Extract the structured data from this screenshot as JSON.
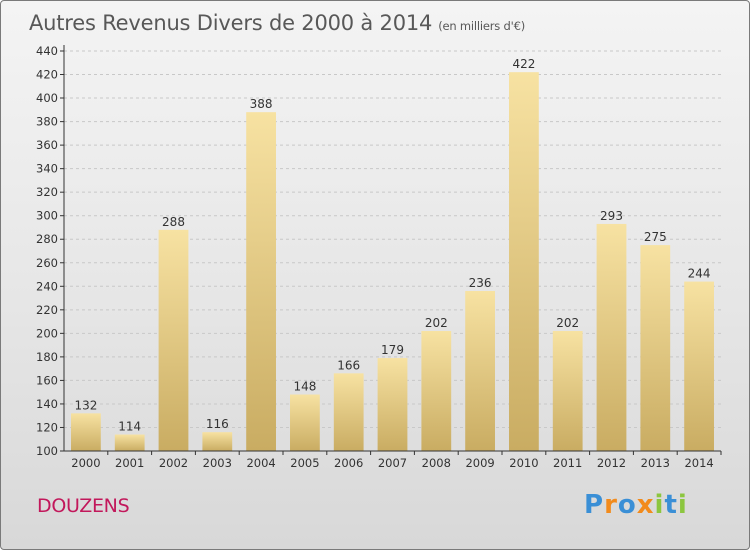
{
  "title": "Autres Revenus Divers de 2000 à 2014",
  "subtitle": "(en milliers d'€)",
  "commune": "DOUZENS",
  "logo": {
    "text": "Proxiti",
    "letters": [
      {
        "ch": "P",
        "color": "#3a8fd6"
      },
      {
        "ch": "r",
        "color": "#f28b1c"
      },
      {
        "ch": "o",
        "color": "#3a8fd6"
      },
      {
        "ch": "x",
        "color": "#f28b1c"
      },
      {
        "ch": "i",
        "color": "#8cc63f"
      },
      {
        "ch": "t",
        "color": "#3a8fd6"
      },
      {
        "ch": "i",
        "color": "#8cc63f"
      }
    ]
  },
  "colors": {
    "bar_top": "#f7e2a2",
    "bar_bottom": "#c9ac62",
    "axis": "#333333",
    "grid": "#c8c8c8",
    "commune": "#c2185b"
  },
  "chart_data": {
    "type": "bar",
    "title": "Autres Revenus Divers de 2000 à 2014",
    "categories": [
      "2000",
      "2001",
      "2002",
      "2003",
      "2004",
      "2005",
      "2006",
      "2007",
      "2008",
      "2009",
      "2010",
      "2011",
      "2012",
      "2013",
      "2014"
    ],
    "values": [
      132,
      114,
      288,
      116,
      388,
      148,
      166,
      179,
      202,
      236,
      422,
      202,
      293,
      275,
      244
    ],
    "ylim": [
      100,
      440
    ],
    "yticks": [
      100,
      120,
      140,
      160,
      180,
      200,
      220,
      240,
      260,
      280,
      300,
      320,
      340,
      360,
      380,
      400,
      420,
      440
    ],
    "grid": true,
    "data_labels": true
  }
}
